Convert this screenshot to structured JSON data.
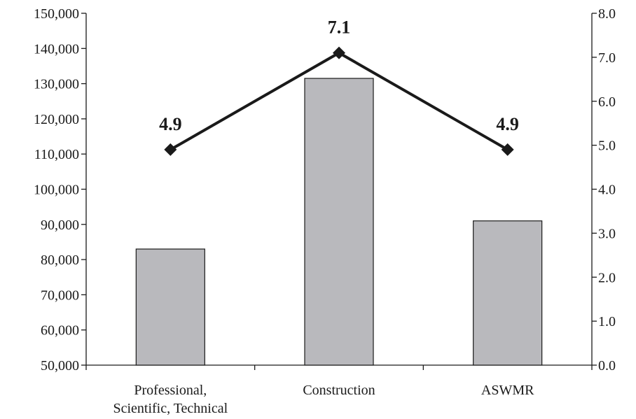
{
  "chart_data": {
    "type": "bar",
    "categories": [
      [
        "Professional,",
        "Scientific, Technical"
      ],
      [
        "Construction"
      ],
      [
        "ASWMR"
      ]
    ],
    "series": [
      {
        "type": "bar",
        "axis": "left",
        "values": [
          83000,
          131500,
          91000
        ],
        "color": "#b9b9bd"
      },
      {
        "type": "line",
        "axis": "right",
        "values": [
          4.9,
          7.1,
          4.9
        ],
        "labels": [
          "4.9",
          "7.1",
          "4.9"
        ],
        "color": "#1a1a1a",
        "marker": "diamond"
      }
    ],
    "y_left": {
      "lim": [
        50000,
        150000
      ],
      "ticks": [
        50000,
        60000,
        70000,
        80000,
        90000,
        100000,
        110000,
        120000,
        130000,
        140000,
        150000
      ],
      "tick_labels": [
        "50,000",
        "60,000",
        "70,000",
        "80,000",
        "90,000",
        "100,000",
        "110,000",
        "120,000",
        "130,000",
        "140,000",
        "150,000"
      ]
    },
    "y_right": {
      "lim": [
        0,
        8
      ],
      "ticks": [
        0,
        1,
        2,
        3,
        4,
        5,
        6,
        7,
        8
      ],
      "tick_labels": [
        "0.0",
        "1.0",
        "2.0",
        "3.0",
        "4.0",
        "5.0",
        "6.0",
        "7.0",
        "8.0"
      ]
    },
    "title": "",
    "xlabel": "",
    "ylabel": "",
    "grid": false,
    "legend": "none"
  }
}
